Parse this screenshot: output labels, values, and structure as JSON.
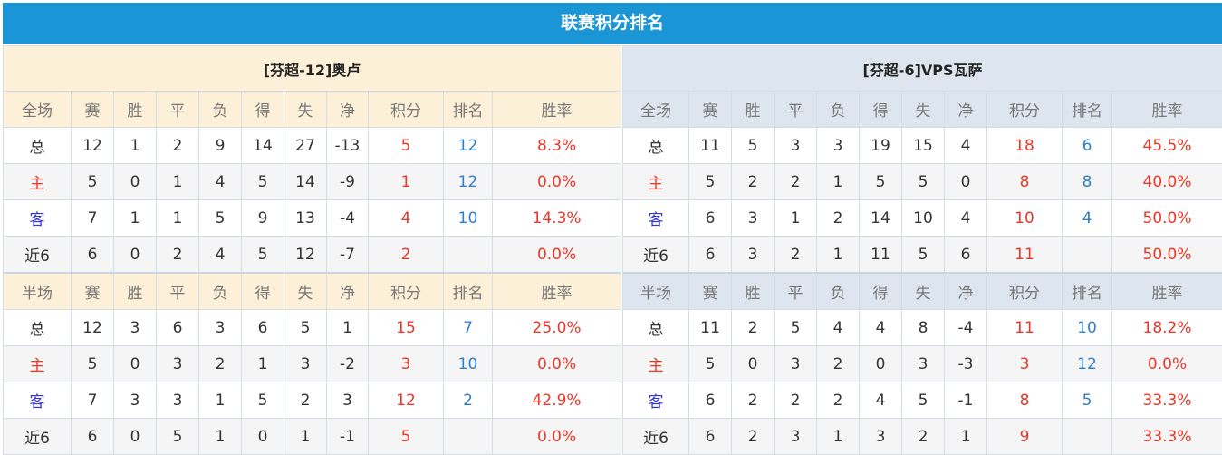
{
  "title": "联赛积分排名",
  "headers_full": [
    "全场",
    "赛",
    "胜",
    "平",
    "负",
    "得",
    "失",
    "净",
    "积分",
    "排名",
    "胜率"
  ],
  "headers_half": [
    "半场",
    "赛",
    "胜",
    "平",
    "负",
    "得",
    "失",
    "净",
    "积分",
    "排名",
    "胜率"
  ],
  "colors": {
    "title_bar": "#1a96d6",
    "home_header": "#fdf0d8",
    "away_header": "#dde6ef",
    "points": "#e8382a",
    "rank": "#2f7fc8"
  },
  "teams": [
    {
      "name": "[芬超-12]奥卢",
      "full": [
        [
          "总",
          "12",
          "1",
          "2",
          "9",
          "14",
          "27",
          "-13",
          "5",
          "12",
          "8.3%"
        ],
        [
          "主",
          "5",
          "0",
          "1",
          "4",
          "5",
          "14",
          "-9",
          "1",
          "12",
          "0.0%"
        ],
        [
          "客",
          "7",
          "1",
          "1",
          "5",
          "9",
          "13",
          "-4",
          "4",
          "10",
          "14.3%"
        ],
        [
          "近6",
          "6",
          "0",
          "2",
          "4",
          "5",
          "12",
          "-7",
          "2",
          "",
          "0.0%"
        ]
      ],
      "half": [
        [
          "总",
          "12",
          "3",
          "6",
          "3",
          "6",
          "5",
          "1",
          "15",
          "7",
          "25.0%"
        ],
        [
          "主",
          "5",
          "0",
          "3",
          "2",
          "1",
          "3",
          "-2",
          "3",
          "10",
          "0.0%"
        ],
        [
          "客",
          "7",
          "3",
          "3",
          "1",
          "5",
          "2",
          "3",
          "12",
          "2",
          "42.9%"
        ],
        [
          "近6",
          "6",
          "0",
          "5",
          "1",
          "0",
          "1",
          "-1",
          "5",
          "",
          "0.0%"
        ]
      ]
    },
    {
      "name": "[芬超-6]VPS瓦萨",
      "full": [
        [
          "总",
          "11",
          "5",
          "3",
          "3",
          "19",
          "15",
          "4",
          "18",
          "6",
          "45.5%"
        ],
        [
          "主",
          "5",
          "2",
          "2",
          "1",
          "5",
          "5",
          "0",
          "8",
          "8",
          "40.0%"
        ],
        [
          "客",
          "6",
          "3",
          "1",
          "2",
          "14",
          "10",
          "4",
          "10",
          "4",
          "50.0%"
        ],
        [
          "近6",
          "6",
          "3",
          "2",
          "1",
          "11",
          "5",
          "6",
          "11",
          "",
          "50.0%"
        ]
      ],
      "half": [
        [
          "总",
          "11",
          "2",
          "5",
          "4",
          "4",
          "8",
          "-4",
          "11",
          "10",
          "18.2%"
        ],
        [
          "主",
          "5",
          "0",
          "3",
          "2",
          "0",
          "3",
          "-3",
          "3",
          "12",
          "0.0%"
        ],
        [
          "客",
          "6",
          "2",
          "2",
          "2",
          "4",
          "5",
          "-1",
          "8",
          "5",
          "33.3%"
        ],
        [
          "近6",
          "6",
          "2",
          "3",
          "1",
          "3",
          "2",
          "1",
          "9",
          "",
          "33.3%"
        ]
      ]
    }
  ]
}
